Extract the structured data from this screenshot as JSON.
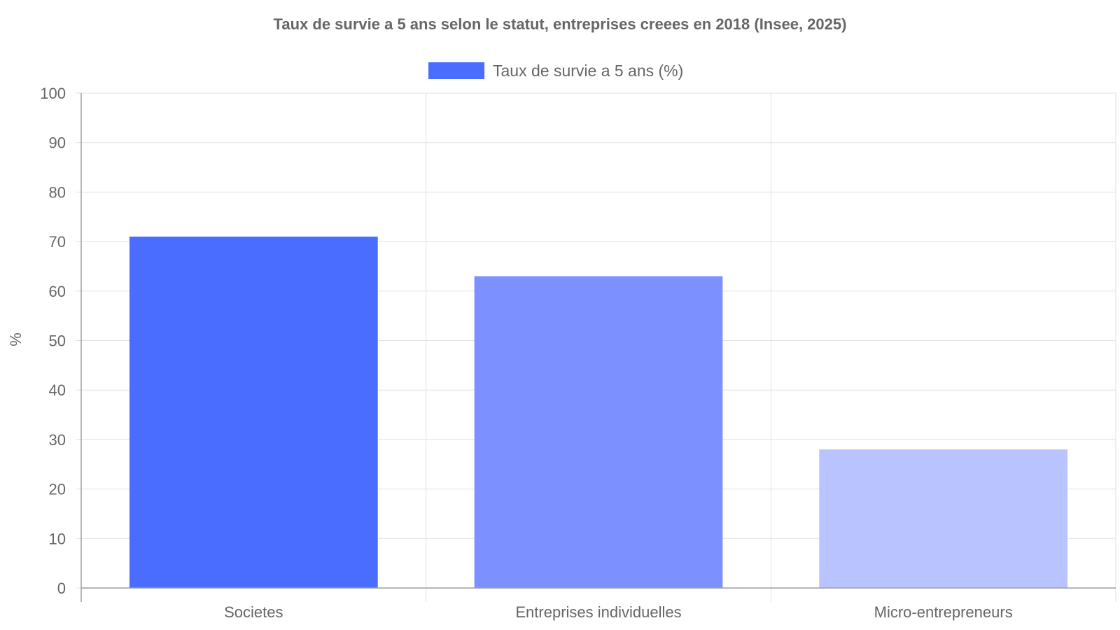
{
  "chart_data": {
    "type": "bar",
    "title": "Taux de survie a 5 ans selon le statut, entreprises creees en 2018 (Insee, 2025)",
    "ylabel": "%",
    "xlabel": "",
    "categories": [
      "Societes",
      "Entreprises individuelles",
      "Micro-entrepreneurs"
    ],
    "series": [
      {
        "name": "Taux de survie a 5 ans (%)",
        "values": [
          71,
          63,
          28
        ],
        "colors": [
          "#4a6cff",
          "#7c91ff",
          "#b8c3ff"
        ]
      }
    ],
    "ylim": [
      0,
      100
    ],
    "yticks": [
      "0",
      "10",
      "20",
      "30",
      "40",
      "50",
      "60",
      "70",
      "80",
      "90",
      "100"
    ],
    "grid": true,
    "legend": "top-center"
  }
}
